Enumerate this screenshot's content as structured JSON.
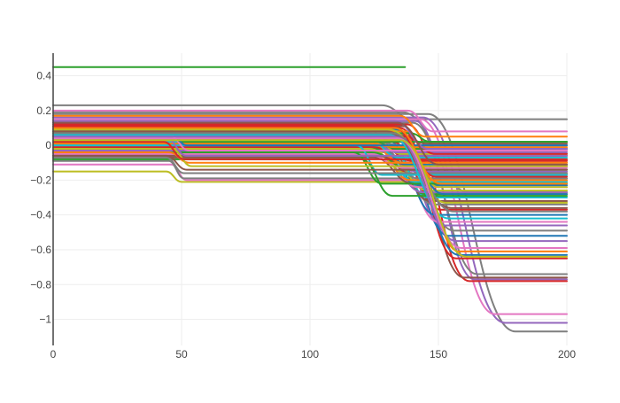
{
  "chart_data": {
    "type": "line",
    "title": "",
    "xlabel": "",
    "ylabel": "",
    "xlim": [
      0,
      200
    ],
    "ylim": [
      -1.15,
      0.53
    ],
    "grid": true,
    "legend": "none",
    "x_ticks": [
      {
        "value": 0,
        "label": "0"
      },
      {
        "value": 50,
        "label": "50"
      },
      {
        "value": 100,
        "label": "100"
      },
      {
        "value": 150,
        "label": "150"
      },
      {
        "value": 200,
        "label": "200"
      }
    ],
    "y_ticks": [
      {
        "value": 0.4,
        "label": "0.4"
      },
      {
        "value": 0.2,
        "label": "0.2"
      },
      {
        "value": 0,
        "label": "0"
      },
      {
        "value": -0.2,
        "label": "−0.2"
      },
      {
        "value": -0.4,
        "label": "−0.4"
      },
      {
        "value": -0.6,
        "label": "−0.6"
      },
      {
        "value": -0.8,
        "label": "−0.8"
      },
      {
        "value": -1,
        "label": "−1"
      }
    ],
    "colors": [
      "#1f77b4",
      "#ff7f0e",
      "#2ca02c",
      "#d62728",
      "#9467bd",
      "#8c564b",
      "#e377c2",
      "#7f7f7f",
      "#bcbd22",
      "#17becf"
    ],
    "series": [
      {
        "x": [
          0,
          137
        ],
        "y": [
          0.45,
          0.45
        ],
        "color": "#2ca02c"
      },
      {
        "x": [
          0,
          44,
          50,
          200
        ],
        "y": [
          -0.15,
          -0.15,
          -0.21,
          -0.21
        ],
        "color": "#bcbd22"
      },
      {
        "x": [
          0,
          46,
          52,
          200
        ],
        "y": [
          -0.11,
          -0.11,
          -0.2,
          -0.2
        ],
        "color": "#e377c2"
      },
      {
        "x": [
          0,
          45,
          51,
          200
        ],
        "y": [
          -0.09,
          -0.09,
          -0.19,
          -0.19
        ],
        "color": "#7f7f7f"
      },
      {
        "x": [
          0,
          128,
          140,
          200
        ],
        "y": [
          0.23,
          0.23,
          0.15,
          0.15
        ],
        "color": "#7f7f7f"
      },
      {
        "x": [
          0,
          136,
          162,
          200
        ],
        "y": [
          0.19,
          0.19,
          -0.27,
          -0.27
        ],
        "color": "#7f7f7f"
      },
      {
        "x": [
          0,
          146,
          180,
          200
        ],
        "y": [
          0.18,
          0.18,
          -1.07,
          -1.07
        ],
        "color": "#7f7f7f"
      },
      {
        "x": [
          0,
          144,
          176,
          200
        ],
        "y": [
          0.16,
          0.16,
          -1.02,
          -1.02
        ],
        "color": "#9467bd"
      },
      {
        "x": [
          0,
          143,
          172,
          200
        ],
        "y": [
          0.15,
          0.15,
          -0.97,
          -0.97
        ],
        "color": "#e377c2"
      },
      {
        "x": [
          0,
          141,
          164,
          200
        ],
        "y": [
          0.14,
          0.14,
          -0.77,
          -0.77
        ],
        "color": "#9467bd"
      },
      {
        "x": [
          0,
          140,
          165,
          200
        ],
        "y": [
          0.13,
          0.13,
          -0.74,
          -0.74
        ],
        "color": "#7f7f7f"
      },
      {
        "x": [
          0,
          138,
          162,
          200
        ],
        "y": [
          0.12,
          0.12,
          -0.78,
          -0.78
        ],
        "color": "#d62728"
      },
      {
        "x": [
          0,
          136,
          160,
          200
        ],
        "y": [
          0.11,
          0.11,
          -0.76,
          -0.76
        ],
        "color": "#8c564b"
      },
      {
        "x": [
          0,
          135,
          157,
          200
        ],
        "y": [
          0.1,
          0.1,
          -0.65,
          -0.65
        ],
        "color": "#d62728"
      },
      {
        "x": [
          0,
          134,
          158,
          200
        ],
        "y": [
          0.09,
          0.09,
          -0.63,
          -0.63
        ],
        "color": "#1f77b4"
      },
      {
        "x": [
          0,
          137,
          158,
          200
        ],
        "y": [
          0.08,
          0.08,
          -0.61,
          -0.61
        ],
        "color": "#ff7f0e"
      },
      {
        "x": [
          0,
          133,
          154,
          200
        ],
        "y": [
          0.07,
          0.07,
          -0.52,
          -0.52
        ],
        "color": "#1f77b4"
      },
      {
        "x": [
          0,
          134,
          156,
          200
        ],
        "y": [
          0.06,
          0.06,
          -0.49,
          -0.49
        ],
        "color": "#7f7f7f"
      },
      {
        "x": [
          0,
          132,
          152,
          200
        ],
        "y": [
          0.05,
          0.05,
          -0.46,
          -0.46
        ],
        "color": "#9467bd"
      },
      {
        "x": [
          0,
          131,
          150,
          200
        ],
        "y": [
          0.04,
          0.04,
          -0.44,
          -0.44
        ],
        "color": "#e377c2"
      },
      {
        "x": [
          0,
          130,
          149,
          200
        ],
        "y": [
          0.03,
          0.03,
          -0.4,
          -0.4
        ],
        "color": "#1f77b4"
      },
      {
        "x": [
          0,
          132,
          151,
          200
        ],
        "y": [
          0.02,
          0.02,
          -0.37,
          -0.37
        ],
        "color": "#d62728"
      },
      {
        "x": [
          0,
          130,
          148,
          200
        ],
        "y": [
          0.01,
          0.01,
          -0.34,
          -0.34
        ],
        "color": "#7f7f7f"
      },
      {
        "x": [
          0,
          129,
          147,
          200
        ],
        "y": [
          0.0,
          0.0,
          -0.32,
          -0.32
        ],
        "color": "#8c564b"
      },
      {
        "x": [
          0,
          131,
          146,
          200
        ],
        "y": [
          -0.01,
          -0.01,
          -0.3,
          -0.3
        ],
        "color": "#17becf"
      },
      {
        "x": [
          0,
          128,
          145,
          200
        ],
        "y": [
          -0.02,
          -0.02,
          -0.28,
          -0.28
        ],
        "color": "#2ca02c"
      },
      {
        "x": [
          0,
          127,
          144,
          200
        ],
        "y": [
          -0.03,
          -0.03,
          -0.27,
          -0.27
        ],
        "color": "#9467bd"
      },
      {
        "x": [
          0,
          129,
          146,
          200
        ],
        "y": [
          -0.04,
          -0.04,
          -0.26,
          -0.26
        ],
        "color": "#bcbd22"
      },
      {
        "x": [
          0,
          126,
          142,
          200
        ],
        "y": [
          -0.05,
          -0.05,
          -0.24,
          -0.24
        ],
        "color": "#e377c2"
      },
      {
        "x": [
          0,
          128,
          143,
          200
        ],
        "y": [
          -0.06,
          -0.06,
          -0.23,
          -0.23
        ],
        "color": "#1f77b4"
      },
      {
        "x": [
          0,
          125,
          140,
          200
        ],
        "y": [
          -0.07,
          -0.07,
          -0.22,
          -0.22
        ],
        "color": "#8c564b"
      },
      {
        "x": [
          0,
          126,
          141,
          200
        ],
        "y": [
          0.02,
          0.02,
          -0.21,
          -0.21
        ],
        "color": "#17becf"
      },
      {
        "x": [
          0,
          124,
          139,
          200
        ],
        "y": [
          0.01,
          0.01,
          -0.2,
          -0.2
        ],
        "color": "#ff7f0e"
      },
      {
        "x": [
          0,
          127,
          142,
          200
        ],
        "y": [
          0.0,
          0.0,
          -0.19,
          -0.19
        ],
        "color": "#7f7f7f"
      },
      {
        "x": [
          0,
          125,
          140,
          200
        ],
        "y": [
          -0.01,
          -0.01,
          -0.17,
          -0.17
        ],
        "color": "#d62728"
      },
      {
        "x": [
          0,
          123,
          138,
          200
        ],
        "y": [
          -0.02,
          -0.02,
          -0.16,
          -0.16
        ],
        "color": "#bcbd22"
      },
      {
        "x": [
          0,
          126,
          142,
          200
        ],
        "y": [
          -0.03,
          -0.03,
          -0.15,
          -0.15
        ],
        "color": "#9467bd"
      },
      {
        "x": [
          0,
          124,
          139,
          200
        ],
        "y": [
          -0.04,
          -0.04,
          -0.14,
          -0.14
        ],
        "color": "#2ca02c"
      },
      {
        "x": [
          0,
          122,
          137,
          200
        ],
        "y": [
          -0.05,
          -0.05,
          -0.13,
          -0.13
        ],
        "color": "#e377c2"
      },
      {
        "x": [
          0,
          125,
          141,
          200
        ],
        "y": [
          -0.06,
          -0.06,
          -0.12,
          -0.12
        ],
        "color": "#8c564b"
      },
      {
        "x": [
          0,
          123,
          138,
          200
        ],
        "y": [
          0.05,
          0.05,
          -0.11,
          -0.11
        ],
        "color": "#1f77b4"
      },
      {
        "x": [
          0,
          121,
          136,
          200
        ],
        "y": [
          0.06,
          0.06,
          -0.1,
          -0.1
        ],
        "color": "#ff7f0e"
      },
      {
        "x": [
          0,
          124,
          140,
          200
        ],
        "y": [
          0.04,
          0.04,
          -0.09,
          -0.09
        ],
        "color": "#d62728"
      },
      {
        "x": [
          0,
          122,
          137,
          200
        ],
        "y": [
          0.03,
          0.03,
          -0.08,
          -0.08
        ],
        "color": "#7f7f7f"
      },
      {
        "x": [
          0,
          120,
          135,
          200
        ],
        "y": [
          0.07,
          0.07,
          -0.07,
          -0.07
        ],
        "color": "#17becf"
      },
      {
        "x": [
          0,
          123,
          139,
          200
        ],
        "y": [
          0.08,
          0.08,
          -0.06,
          -0.06
        ],
        "color": "#8c564b"
      },
      {
        "x": [
          0,
          121,
          136,
          200
        ],
        "y": [
          0.09,
          0.09,
          -0.05,
          -0.05
        ],
        "color": "#bcbd22"
      },
      {
        "x": [
          0,
          119,
          134,
          200
        ],
        "y": [
          0.1,
          0.1,
          -0.04,
          -0.04
        ],
        "color": "#9467bd"
      },
      {
        "x": [
          0,
          122,
          138,
          200
        ],
        "y": [
          0.06,
          0.06,
          -0.03,
          -0.03
        ],
        "color": "#e377c2"
      },
      {
        "x": [
          0,
          120,
          135,
          200
        ],
        "y": [
          0.05,
          0.05,
          -0.02,
          -0.02
        ],
        "color": "#2ca02c"
      },
      {
        "x": [
          0,
          118,
          133,
          200
        ],
        "y": [
          0.04,
          0.04,
          -0.01,
          -0.01
        ],
        "color": "#ff7f0e"
      },
      {
        "x": [
          0,
          121,
          137,
          200
        ],
        "y": [
          0.03,
          0.03,
          0.0,
          0.0
        ],
        "color": "#7f7f7f"
      },
      {
        "x": [
          0,
          139,
          147,
          200
        ],
        "y": [
          0.07,
          0.07,
          0.02,
          0.02
        ],
        "color": "#2ca02c"
      },
      {
        "x": [
          0,
          136,
          145,
          200
        ],
        "y": [
          0.06,
          0.06,
          0.01,
          0.01
        ],
        "color": "#8c564b"
      },
      {
        "x": [
          0,
          137,
          149,
          200
        ],
        "y": [
          0.05,
          0.05,
          -0.05,
          -0.05
        ],
        "color": "#d62728"
      },
      {
        "x": [
          0,
          135,
          152,
          200
        ],
        "y": [
          0.04,
          0.04,
          -0.28,
          -0.28
        ],
        "color": "#1f77b4"
      },
      {
        "x": [
          0,
          136,
          150,
          200
        ],
        "y": [
          0.03,
          0.03,
          -0.24,
          -0.24
        ],
        "color": "#bcbd22"
      },
      {
        "x": [
          0,
          118,
          128,
          200
        ],
        "y": [
          0.0,
          0.0,
          -0.17,
          -0.17
        ],
        "color": "#17becf"
      },
      {
        "x": [
          0,
          117,
          128,
          200
        ],
        "y": [
          -0.04,
          -0.04,
          -0.22,
          -0.22
        ],
        "color": "#2ca02c"
      },
      {
        "x": [
          0,
          120,
          132,
          200
        ],
        "y": [
          -0.08,
          -0.08,
          -0.29,
          -0.29
        ],
        "color": "#2ca02c"
      },
      {
        "x": [
          0,
          44,
          52,
          200
        ],
        "y": [
          -0.06,
          -0.06,
          -0.14,
          -0.14
        ],
        "color": "#8c564b"
      },
      {
        "x": [
          0,
          45,
          53,
          200
        ],
        "y": [
          -0.04,
          -0.04,
          -0.1,
          -0.1
        ],
        "color": "#ff7f0e"
      },
      {
        "x": [
          0,
          46,
          54,
          200
        ],
        "y": [
          -0.02,
          -0.02,
          -0.12,
          -0.12
        ],
        "color": "#bcbd22"
      },
      {
        "x": [
          0,
          43,
          51,
          200
        ],
        "y": [
          0.02,
          0.02,
          -0.08,
          -0.08
        ],
        "color": "#d62728"
      },
      {
        "x": [
          0,
          44,
          52,
          200
        ],
        "y": [
          0.04,
          0.04,
          -0.06,
          -0.06
        ],
        "color": "#9467bd"
      },
      {
        "x": [
          0,
          45,
          53,
          200
        ],
        "y": [
          0.06,
          0.06,
          -0.03,
          -0.03
        ],
        "color": "#e377c2"
      },
      {
        "x": [
          0,
          46,
          50,
          200
        ],
        "y": [
          0.08,
          0.08,
          0.02,
          0.02
        ],
        "color": "#2ca02c"
      },
      {
        "x": [
          0,
          45,
          52,
          200
        ],
        "y": [
          0.09,
          0.09,
          0.0,
          0.0
        ],
        "color": "#1f77b4"
      },
      {
        "x": [
          0,
          44,
          51,
          200
        ],
        "y": [
          -0.07,
          -0.07,
          -0.16,
          -0.16
        ],
        "color": "#7f7f7f"
      },
      {
        "x": [
          0,
          138,
          148,
          200
        ],
        "y": [
          0.2,
          0.2,
          0.08,
          0.08
        ],
        "color": "#e377c2"
      },
      {
        "x": [
          0,
          135,
          145,
          200
        ],
        "y": [
          0.17,
          0.17,
          0.05,
          0.05
        ],
        "color": "#ff7f0e"
      },
      {
        "x": [
          0,
          133,
          146,
          200
        ],
        "y": [
          0.14,
          0.14,
          -0.02,
          -0.02
        ],
        "color": "#9467bd"
      },
      {
        "x": [
          0,
          134,
          150,
          200
        ],
        "y": [
          0.13,
          0.13,
          -0.11,
          -0.11
        ],
        "color": "#8c564b"
      },
      {
        "x": [
          0,
          132,
          149,
          200
        ],
        "y": [
          0.11,
          0.11,
          -0.18,
          -0.18
        ],
        "color": "#d62728"
      },
      {
        "x": [
          0,
          133,
          151,
          200
        ],
        "y": [
          0.1,
          0.1,
          -0.22,
          -0.22
        ],
        "color": "#ff7f0e"
      },
      {
        "x": [
          0,
          131,
          153,
          200
        ],
        "y": [
          0.09,
          0.09,
          -0.33,
          -0.33
        ],
        "color": "#bcbd22"
      },
      {
        "x": [
          0,
          130,
          155,
          200
        ],
        "y": [
          0.08,
          0.08,
          -0.36,
          -0.36
        ],
        "color": "#8c564b"
      },
      {
        "x": [
          0,
          132,
          156,
          200
        ],
        "y": [
          0.07,
          0.07,
          -0.38,
          -0.38
        ],
        "color": "#7f7f7f"
      },
      {
        "x": [
          0,
          131,
          154,
          200
        ],
        "y": [
          0.06,
          0.06,
          -0.42,
          -0.42
        ],
        "color": "#17becf"
      },
      {
        "x": [
          0,
          133,
          157,
          200
        ],
        "y": [
          0.05,
          0.05,
          -0.55,
          -0.55
        ],
        "color": "#9467bd"
      },
      {
        "x": [
          0,
          134,
          159,
          200
        ],
        "y": [
          0.04,
          0.04,
          -0.59,
          -0.59
        ],
        "color": "#e377c2"
      },
      {
        "x": [
          0,
          135,
          161,
          200
        ],
        "y": [
          0.03,
          0.03,
          -0.64,
          -0.64
        ],
        "color": "#bcbd22"
      }
    ]
  }
}
